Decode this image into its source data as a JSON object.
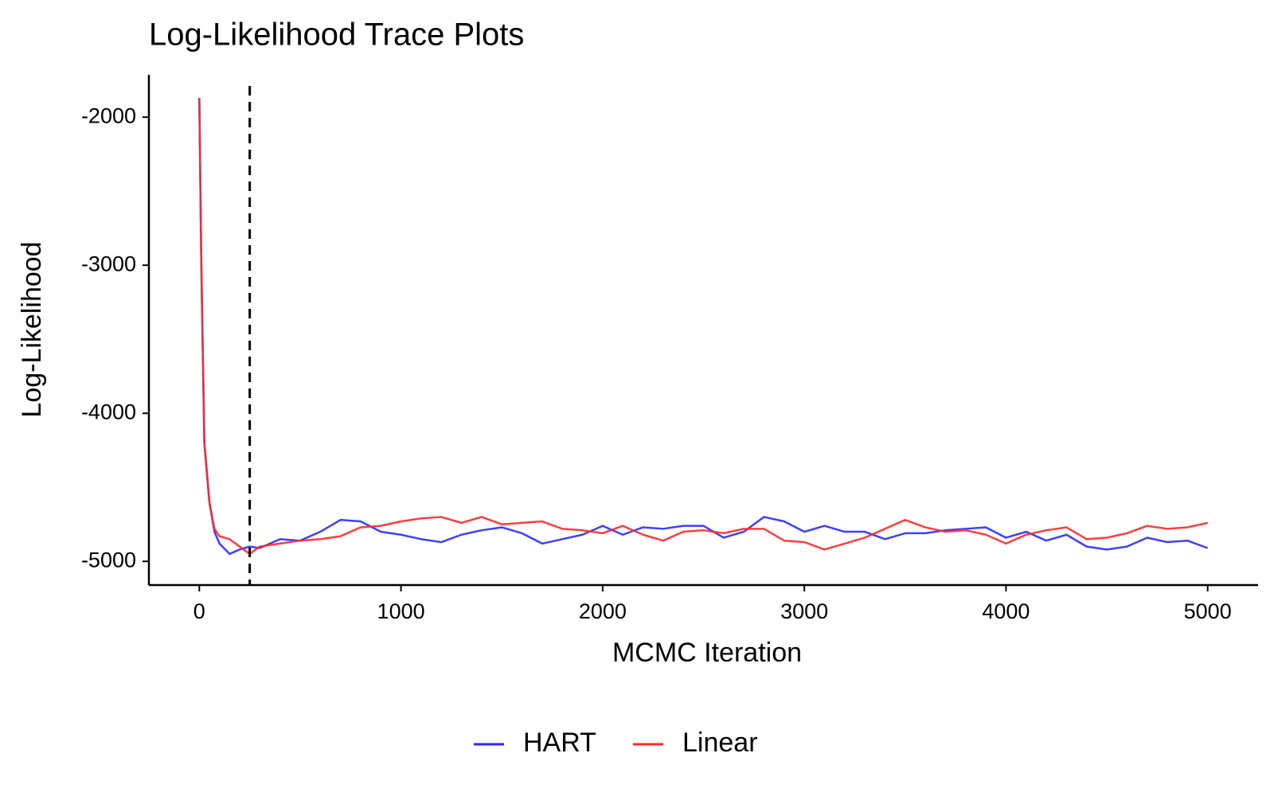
{
  "chart_data": {
    "type": "line",
    "title": "Log-Likelihood Trace Plots",
    "x_label": "MCMC Iteration",
    "y_label": "Log-Likelihood",
    "x": [
      0,
      10,
      25,
      50,
      75,
      100,
      150,
      200,
      250,
      300,
      400,
      500,
      600,
      700,
      800,
      900,
      1000,
      1100,
      1200,
      1300,
      1400,
      1500,
      1600,
      1700,
      1800,
      1900,
      2000,
      2100,
      2200,
      2300,
      2400,
      2500,
      2600,
      2700,
      2800,
      2900,
      3000,
      3100,
      3200,
      3300,
      3400,
      3500,
      3600,
      3700,
      3800,
      3900,
      4000,
      4100,
      4200,
      4300,
      4400,
      4500,
      4600,
      4700,
      4800,
      4900,
      5000
    ],
    "series": [
      {
        "name": "HART",
        "color": "#2a2aff",
        "values": [
          -1870,
          -3000,
          -4200,
          -4600,
          -4800,
          -4880,
          -4950,
          -4920,
          -4900,
          -4910,
          -4850,
          -4860,
          -4800,
          -4720,
          -4730,
          -4800,
          -4820,
          -4850,
          -4870,
          -4820,
          -4790,
          -4770,
          -4810,
          -4880,
          -4850,
          -4820,
          -4760,
          -4820,
          -4770,
          -4780,
          -4760,
          -4760,
          -4840,
          -4800,
          -4700,
          -4730,
          -4800,
          -4760,
          -4800,
          -4800,
          -4850,
          -4810,
          -4810,
          -4790,
          -4780,
          -4770,
          -4840,
          -4800,
          -4860,
          -4820,
          -4900,
          -4920,
          -4900,
          -4840,
          -4870,
          -4860,
          -4910
        ]
      },
      {
        "name": "Linear",
        "color": "#ff2a2a",
        "values": [
          -1870,
          -3000,
          -4200,
          -4600,
          -4780,
          -4830,
          -4850,
          -4900,
          -4950,
          -4900,
          -4880,
          -4860,
          -4850,
          -4830,
          -4770,
          -4760,
          -4730,
          -4710,
          -4700,
          -4740,
          -4700,
          -4750,
          -4740,
          -4730,
          -4780,
          -4790,
          -4810,
          -4760,
          -4820,
          -4860,
          -4800,
          -4790,
          -4810,
          -4780,
          -4780,
          -4860,
          -4870,
          -4920,
          -4880,
          -4840,
          -4780,
          -4720,
          -4770,
          -4800,
          -4790,
          -4820,
          -4880,
          -4820,
          -4790,
          -4770,
          -4850,
          -4840,
          -4810,
          -4760,
          -4780,
          -4770,
          -4740
        ]
      }
    ],
    "vline": 250,
    "xlim": [
      -250,
      5250
    ],
    "xticks": [
      0,
      1000,
      2000,
      3000,
      4000,
      5000
    ],
    "ylim": [
      -5160,
      -1714
    ],
    "yticks": [
      -5000,
      -4000,
      -3000,
      -2000
    ],
    "grid": false,
    "legend_position": "bottom"
  }
}
